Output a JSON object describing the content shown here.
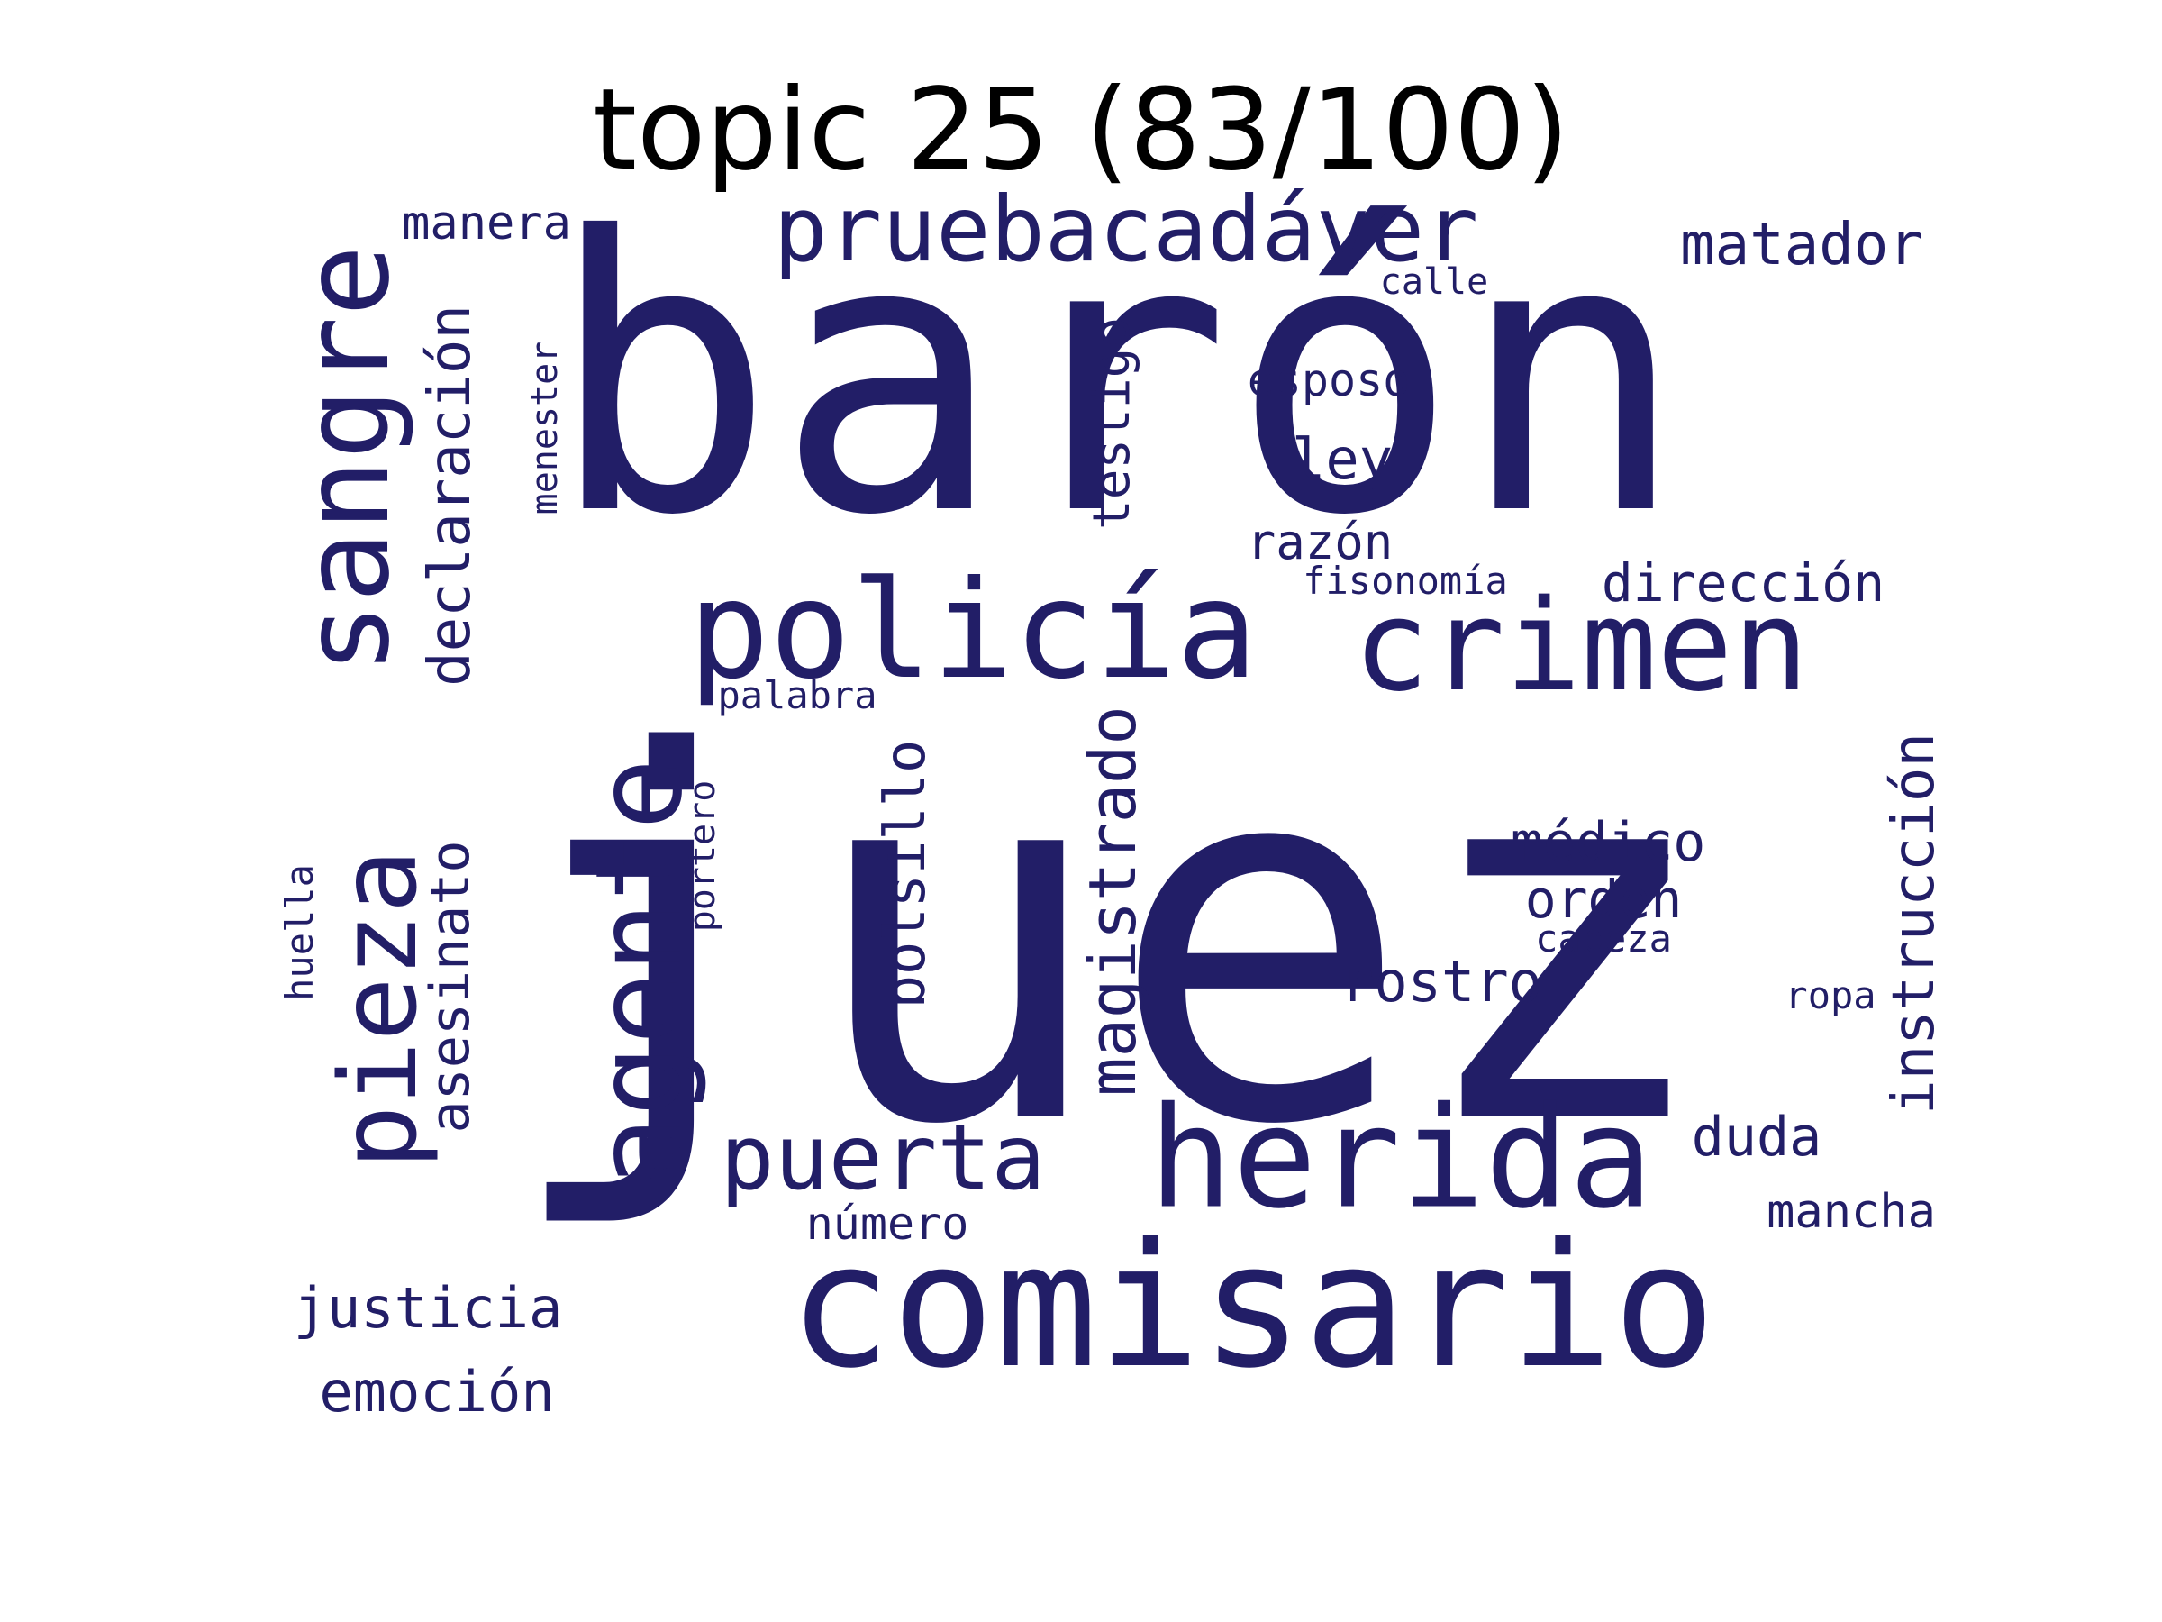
{
  "title": "topic 25 (83/100)",
  "colors": {
    "word": "#221e67",
    "title": "#000000",
    "background": "#ffffff"
  },
  "words": [
    {
      "text": "juez"
    },
    {
      "text": "barón"
    },
    {
      "text": "comisario"
    },
    {
      "text": "herida"
    },
    {
      "text": "policía"
    },
    {
      "text": "crimen"
    },
    {
      "text": "agente"
    },
    {
      "text": "sangre"
    },
    {
      "text": "pieza"
    },
    {
      "text": "pruebacadáver"
    },
    {
      "text": "puerta"
    },
    {
      "text": "magistrado"
    },
    {
      "text": "declaración"
    },
    {
      "text": "instrucción"
    },
    {
      "text": "asesinato"
    },
    {
      "text": "bolsillo"
    },
    {
      "text": "matador"
    },
    {
      "text": "justicia"
    },
    {
      "text": "emoción"
    },
    {
      "text": "rostro"
    },
    {
      "text": "dirección"
    },
    {
      "text": "testigo"
    },
    {
      "text": "médico"
    },
    {
      "text": "manera"
    },
    {
      "text": "ley"
    },
    {
      "text": "duda"
    },
    {
      "text": "orden"
    },
    {
      "text": "mancha"
    },
    {
      "text": "razón"
    },
    {
      "text": "número"
    },
    {
      "text": "esposo"
    },
    {
      "text": "menester"
    },
    {
      "text": "portero"
    },
    {
      "text": "huella"
    },
    {
      "text": "palabra"
    },
    {
      "text": "fisonomía"
    },
    {
      "text": "cabeza"
    },
    {
      "text": "ropa"
    },
    {
      "text": "calle"
    }
  ]
}
